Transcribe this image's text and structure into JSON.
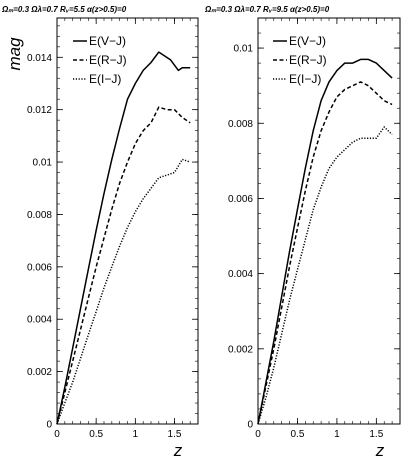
{
  "chart_data": [
    {
      "type": "line",
      "title": "Ωₘ=0.3 Ωλ=0.7 Rᵥ=5.5 α(z>0.5)=0",
      "xlabel": "z",
      "ylabel": "mag",
      "xlim": [
        0,
        1.8
      ],
      "ylim": [
        0,
        0.0155
      ],
      "xticks": [
        "0",
        "0.5",
        "1",
        "1.5"
      ],
      "yticks": [
        "0",
        "0.002",
        "0.004",
        "0.006",
        "0.008",
        "0.01",
        "0.012",
        "0.014"
      ],
      "legend_position": "top-left",
      "series": [
        {
          "name": "E(V−J)",
          "style": "solid",
          "x": [
            0,
            0.1,
            0.2,
            0.3,
            0.4,
            0.5,
            0.6,
            0.7,
            0.8,
            0.9,
            1.0,
            1.1,
            1.2,
            1.3,
            1.35,
            1.45,
            1.55,
            1.6,
            1.7
          ],
          "y": [
            0,
            0.0014,
            0.0029,
            0.0044,
            0.0059,
            0.0074,
            0.0088,
            0.0101,
            0.0113,
            0.0124,
            0.013,
            0.0135,
            0.0138,
            0.0142,
            0.0141,
            0.0139,
            0.0135,
            0.0136,
            0.0136
          ]
        },
        {
          "name": "E(R−J)",
          "style": "dashed",
          "x": [
            0,
            0.1,
            0.2,
            0.3,
            0.4,
            0.5,
            0.6,
            0.7,
            0.8,
            0.9,
            1.0,
            1.1,
            1.2,
            1.3,
            1.4,
            1.5,
            1.6,
            1.7
          ],
          "y": [
            0,
            0.0012,
            0.0024,
            0.0036,
            0.0048,
            0.006,
            0.0071,
            0.0082,
            0.0092,
            0.01,
            0.0107,
            0.0112,
            0.0115,
            0.0121,
            0.012,
            0.012,
            0.0117,
            0.0115
          ]
        },
        {
          "name": "E(I−J)",
          "style": "dotted",
          "x": [
            0,
            0.1,
            0.2,
            0.3,
            0.4,
            0.5,
            0.6,
            0.7,
            0.8,
            0.9,
            1.0,
            1.1,
            1.2,
            1.3,
            1.4,
            1.5,
            1.6,
            1.7
          ],
          "y": [
            0,
            0.0008,
            0.0016,
            0.0025,
            0.0034,
            0.0043,
            0.0052,
            0.006,
            0.0068,
            0.0075,
            0.0081,
            0.0086,
            0.009,
            0.0094,
            0.0095,
            0.0096,
            0.0101,
            0.01
          ]
        }
      ]
    },
    {
      "type": "line",
      "title": "Ωₘ=0.3 Ωλ=0.7 Rᵥ=9.5 α(z>0.5)=0",
      "xlabel": "z",
      "ylabel": "",
      "xlim": [
        0,
        1.8
      ],
      "ylim": [
        0,
        0.0108
      ],
      "xticks": [
        "0",
        "0.5",
        "1",
        "1.5"
      ],
      "yticks": [
        "0",
        "0.002",
        "0.004",
        "0.006",
        "0.008",
        "0.01"
      ],
      "legend_position": "top-left",
      "series": [
        {
          "name": "E(V−J)",
          "style": "solid",
          "x": [
            0,
            0.1,
            0.2,
            0.3,
            0.4,
            0.5,
            0.6,
            0.7,
            0.8,
            0.9,
            1.0,
            1.1,
            1.2,
            1.3,
            1.4,
            1.5,
            1.6,
            1.7
          ],
          "y": [
            0,
            0.0011,
            0.0022,
            0.0034,
            0.0046,
            0.0057,
            0.0068,
            0.0078,
            0.0086,
            0.0091,
            0.0094,
            0.0096,
            0.0096,
            0.0097,
            0.0097,
            0.0096,
            0.0094,
            0.0092
          ]
        },
        {
          "name": "E(R−J)",
          "style": "dashed",
          "x": [
            0,
            0.1,
            0.2,
            0.3,
            0.4,
            0.5,
            0.6,
            0.7,
            0.8,
            0.9,
            1.0,
            1.1,
            1.2,
            1.3,
            1.4,
            1.5,
            1.6,
            1.7
          ],
          "y": [
            0,
            0.001,
            0.002,
            0.0031,
            0.0042,
            0.0052,
            0.0062,
            0.0071,
            0.0078,
            0.0083,
            0.0087,
            0.0089,
            0.009,
            0.0091,
            0.009,
            0.0088,
            0.0086,
            0.0085
          ]
        },
        {
          "name": "E(I−J)",
          "style": "dotted",
          "x": [
            0,
            0.1,
            0.2,
            0.3,
            0.4,
            0.5,
            0.6,
            0.7,
            0.8,
            0.9,
            1.0,
            1.1,
            1.2,
            1.3,
            1.4,
            1.5,
            1.6,
            1.7
          ],
          "y": [
            0,
            0.0007,
            0.0015,
            0.0024,
            0.0033,
            0.0041,
            0.0049,
            0.0057,
            0.0063,
            0.0068,
            0.0071,
            0.0073,
            0.0075,
            0.0076,
            0.0076,
            0.0076,
            0.0079,
            0.0077
          ]
        }
      ]
    }
  ]
}
